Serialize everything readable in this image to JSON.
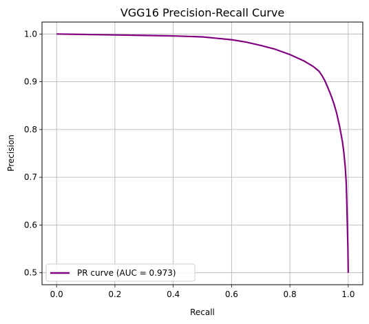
{
  "chart_data": {
    "type": "line",
    "title": "VGG16 Precision-Recall Curve",
    "xlabel": "Recall",
    "ylabel": "Precision",
    "xlim": [
      -0.05,
      1.05
    ],
    "ylim": [
      0.475,
      1.025
    ],
    "xticks": [
      0.0,
      0.2,
      0.4,
      0.6,
      0.8,
      1.0
    ],
    "xtick_labels": [
      "0.0",
      "0.2",
      "0.4",
      "0.6",
      "0.8",
      "1.0"
    ],
    "yticks": [
      0.5,
      0.6,
      0.7,
      0.8,
      0.9,
      1.0
    ],
    "ytick_labels": [
      "0.5",
      "0.6",
      "0.7",
      "0.8",
      "0.9",
      "1.0"
    ],
    "grid": true,
    "legend": {
      "placement": "lower-left",
      "entries": [
        "PR curve (AUC = 0.973)"
      ]
    },
    "series": [
      {
        "name": "PR curve (AUC = 0.973)",
        "color": "#800080",
        "x": [
          0.0,
          0.1,
          0.2,
          0.3,
          0.4,
          0.5,
          0.55,
          0.6,
          0.65,
          0.7,
          0.75,
          0.8,
          0.85,
          0.88,
          0.9,
          0.91,
          0.92,
          0.93,
          0.94,
          0.95,
          0.96,
          0.97,
          0.98,
          0.985,
          0.99,
          0.993,
          0.995,
          0.997,
          0.999,
          1.0
        ],
        "y": [
          1.0,
          0.999,
          0.998,
          0.997,
          0.996,
          0.994,
          0.991,
          0.988,
          0.983,
          0.976,
          0.968,
          0.957,
          0.943,
          0.932,
          0.922,
          0.913,
          0.902,
          0.888,
          0.873,
          0.856,
          0.835,
          0.808,
          0.775,
          0.752,
          0.72,
          0.69,
          0.65,
          0.6,
          0.55,
          0.5
        ]
      }
    ]
  }
}
